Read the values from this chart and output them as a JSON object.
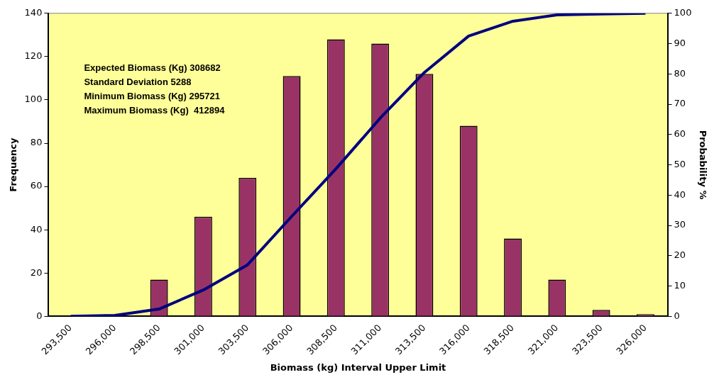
{
  "chart_data": {
    "type": "bar",
    "xlabel": "Biomass (kg) Interval Upper Limit",
    "ylabel": "Frequency",
    "y2label": "Probability %",
    "categories": [
      "293,500",
      "296,000",
      "298,500",
      "301,000",
      "303,500",
      "306,000",
      "308,500",
      "311,000",
      "313,500",
      "316,000",
      "318,500",
      "321,000",
      "323,500",
      "326,000"
    ],
    "series": [
      {
        "color": "#993366",
        "values": [
          0,
          0,
          17,
          46,
          64,
          111,
          128,
          126,
          112,
          88,
          36,
          17,
          3,
          1
        ]
      },
      {
        "type": "line",
        "axis": "y2",
        "color": "#000080",
        "values": [
          0,
          0.3,
          2.4,
          8.7,
          17,
          33,
          48.7,
          65.4,
          80.5,
          92.5,
          97.4,
          99.5,
          99.8,
          100
        ]
      }
    ],
    "ylim": [
      0,
      140
    ],
    "yticks": [
      0,
      20,
      40,
      60,
      80,
      100,
      120,
      140
    ],
    "y2lim": [
      0,
      100
    ],
    "y2ticks": [
      0,
      10,
      20,
      30,
      40,
      50,
      60,
      70,
      80,
      90,
      100
    ],
    "grid": false,
    "legend": false,
    "marker": "none",
    "line_style": "solid",
    "annotations": [
      "Expected Biomass (Kg) 308682",
      "Standard Deviation 5288",
      "Minimum Biomass (Kg) 295721",
      "Maximum Biomass (Kg)  412894"
    ]
  }
}
